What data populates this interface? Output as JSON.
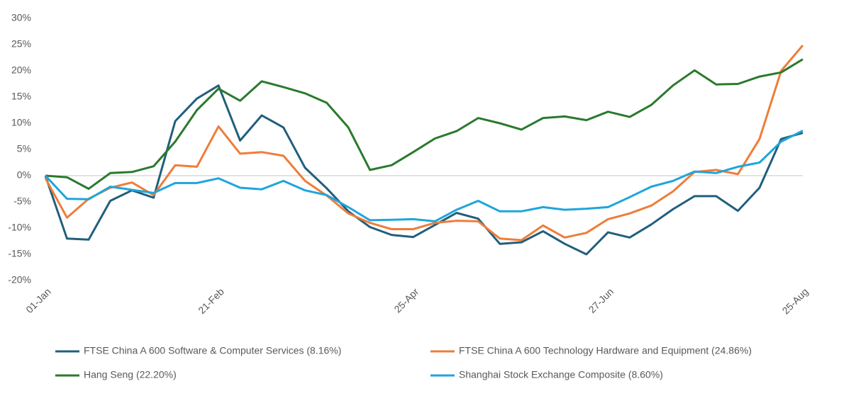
{
  "chart_data": {
    "type": "line",
    "categories": [
      "01-Jan",
      null,
      null,
      null,
      null,
      null,
      null,
      null,
      "21-Feb",
      null,
      null,
      null,
      null,
      null,
      null,
      null,
      null,
      "25-Apr",
      null,
      null,
      null,
      null,
      null,
      null,
      null,
      null,
      "27-Jun",
      null,
      null,
      null,
      null,
      null,
      null,
      null,
      null,
      "25-Aug"
    ],
    "series": [
      {
        "name": "FTSE China A 600 Software & Computer Services (8.16%)",
        "color": "#215f7d",
        "values": [
          0,
          -12,
          -12.2,
          -4.8,
          -2.8,
          -4.2,
          10.4,
          14.7,
          17.2,
          6.7,
          11.5,
          9.2,
          1.5,
          -2.4,
          -6.8,
          -9.8,
          -11.3,
          -11.7,
          -9.4,
          -7.1,
          -8.2,
          -13,
          -12.7,
          -10.6,
          -13,
          -15,
          -10.8,
          -11.8,
          -9.3,
          -6.4,
          -3.9,
          -3.9,
          -6.7,
          -2.3,
          7,
          8.16
        ]
      },
      {
        "name": "FTSE China A 600 Technology Hardware and Equipment (24.86%)",
        "color": "#ee7d3a",
        "values": [
          -0.5,
          -8,
          -4.4,
          -2.3,
          -1.3,
          -3.7,
          2,
          1.7,
          9.4,
          4.2,
          4.5,
          3.8,
          -1,
          -3.8,
          -7.2,
          -9,
          -10.2,
          -10.2,
          -9,
          -8.6,
          -8.7,
          -12,
          -12.3,
          -9.5,
          -11.8,
          -10.9,
          -8.3,
          -7.2,
          -5.7,
          -3,
          0.7,
          1.1,
          0.3,
          7,
          20,
          24.86
        ]
      },
      {
        "name": "Hang Seng (22.20%)",
        "color": "#2a7a2e",
        "values": [
          0,
          -0.3,
          -2.5,
          0.5,
          0.7,
          1.8,
          6.5,
          12.5,
          16.6,
          14.3,
          18,
          16.9,
          15.7,
          13.9,
          9.2,
          1.1,
          2,
          4.5,
          7.1,
          8.5,
          11,
          10,
          8.8,
          11,
          11.3,
          10.6,
          12.2,
          11.2,
          13.5,
          17.2,
          20.1,
          17.4,
          17.5,
          18.9,
          19.7,
          22.2
        ]
      },
      {
        "name": "Shanghai Stock Exchange Composite (8.60%)",
        "color": "#1fa5dc",
        "values": [
          0,
          -4.4,
          -4.5,
          -2.1,
          -2.7,
          -3.3,
          -1.4,
          -1.4,
          -0.5,
          -2.3,
          -2.6,
          -1,
          -2.8,
          -3.7,
          -6,
          -8.5,
          -8.4,
          -8.3,
          -8.7,
          -6.5,
          -4.8,
          -6.8,
          -6.8,
          -6,
          -6.5,
          -6.3,
          -6,
          -4.1,
          -2.1,
          -1,
          0.8,
          0.5,
          1.7,
          2.5,
          6.5,
          8.6
        ]
      }
    ],
    "ylim": [
      -20,
      30
    ],
    "yticks": [
      {
        "value": -20,
        "label": "-20%"
      },
      {
        "value": -15,
        "label": "-15%"
      },
      {
        "value": -10,
        "label": "-10%"
      },
      {
        "value": -5,
        "label": "-5%"
      },
      {
        "value": 0,
        "label": "0%"
      },
      {
        "value": 5,
        "label": "5%"
      },
      {
        "value": 10,
        "label": "10%"
      },
      {
        "value": 15,
        "label": "15%"
      },
      {
        "value": 20,
        "label": "20%"
      },
      {
        "value": 25,
        "label": "25%"
      },
      {
        "value": 30,
        "label": "30%"
      }
    ],
    "grid": false,
    "legend": "bottom"
  }
}
